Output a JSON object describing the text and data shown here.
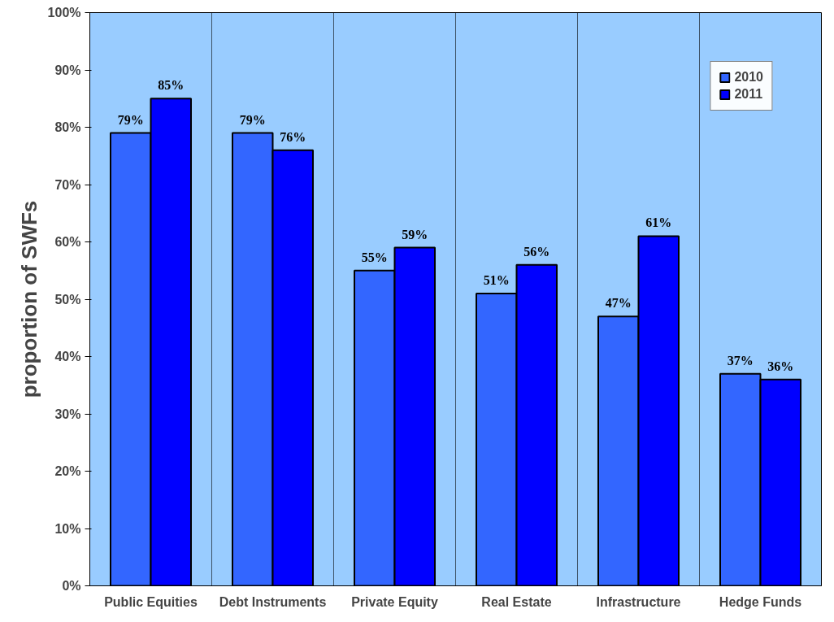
{
  "chart_data": {
    "type": "bar",
    "ylabel": "proportion of SWFs",
    "categories": [
      "Public Equities",
      "Debt Instruments",
      "Private Equity",
      "Real Estate",
      "Infrastructure",
      "Hedge Funds"
    ],
    "series": [
      {
        "name": "2010",
        "color": "#3366ff",
        "values": [
          79,
          79,
          55,
          51,
          47,
          37
        ],
        "value_labels": [
          "79%",
          "79%",
          "55%",
          "51%",
          "47%",
          "37%"
        ]
      },
      {
        "name": "2011",
        "color": "#0000ff",
        "values": [
          85,
          76,
          59,
          56,
          61,
          36
        ],
        "value_labels": [
          "85%",
          "76%",
          "59%",
          "56%",
          "61%",
          "36%"
        ]
      }
    ],
    "ylim": [
      0,
      100
    ],
    "yticks": [
      {
        "value": 0,
        "label": "0%"
      },
      {
        "value": 10,
        "label": "10%"
      },
      {
        "value": 20,
        "label": "20%"
      },
      {
        "value": 30,
        "label": "30%"
      },
      {
        "value": 40,
        "label": "40%"
      },
      {
        "value": 50,
        "label": "50%"
      },
      {
        "value": 60,
        "label": "60%"
      },
      {
        "value": 70,
        "label": "70%"
      },
      {
        "value": 80,
        "label": "80%"
      },
      {
        "value": 90,
        "label": "90%"
      },
      {
        "value": 100,
        "label": "100%"
      }
    ],
    "grid": "x",
    "legend": "top right"
  }
}
